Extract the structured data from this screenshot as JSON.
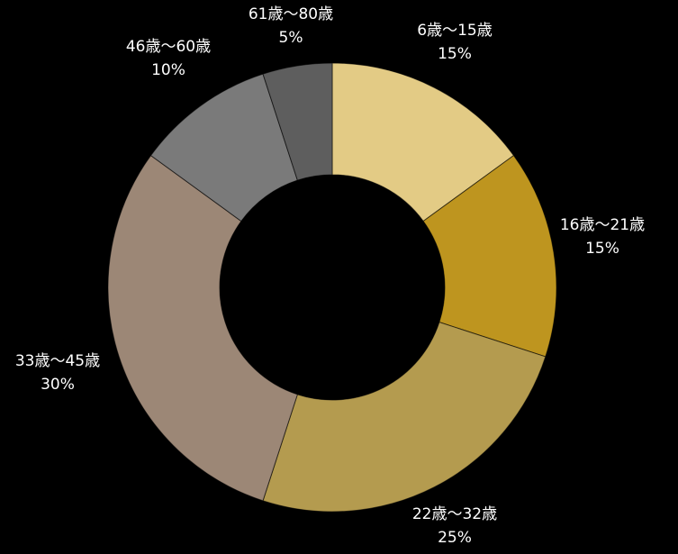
{
  "chart_data": {
    "type": "pie",
    "donut": true,
    "legend": "none",
    "slices": [
      {
        "label": "6歳〜15歳",
        "value": 15,
        "value_label": "15%",
        "color": "#e3cb85"
      },
      {
        "label": "16歳〜21歳",
        "value": 15,
        "value_label": "15%",
        "color": "#be951f"
      },
      {
        "label": "22歳〜32歳",
        "value": 25,
        "value_label": "25%",
        "color": "#b49b4f"
      },
      {
        "label": "33歳〜45歳",
        "value": 30,
        "value_label": "30%",
        "color": "#9c8776"
      },
      {
        "label": "46歳〜60歳",
        "value": 10,
        "value_label": "10%",
        "color": "#7a7a7a"
      },
      {
        "label": "61歳〜80歳",
        "value": 5,
        "value_label": "5%",
        "color": "#5e5e5e"
      }
    ]
  }
}
